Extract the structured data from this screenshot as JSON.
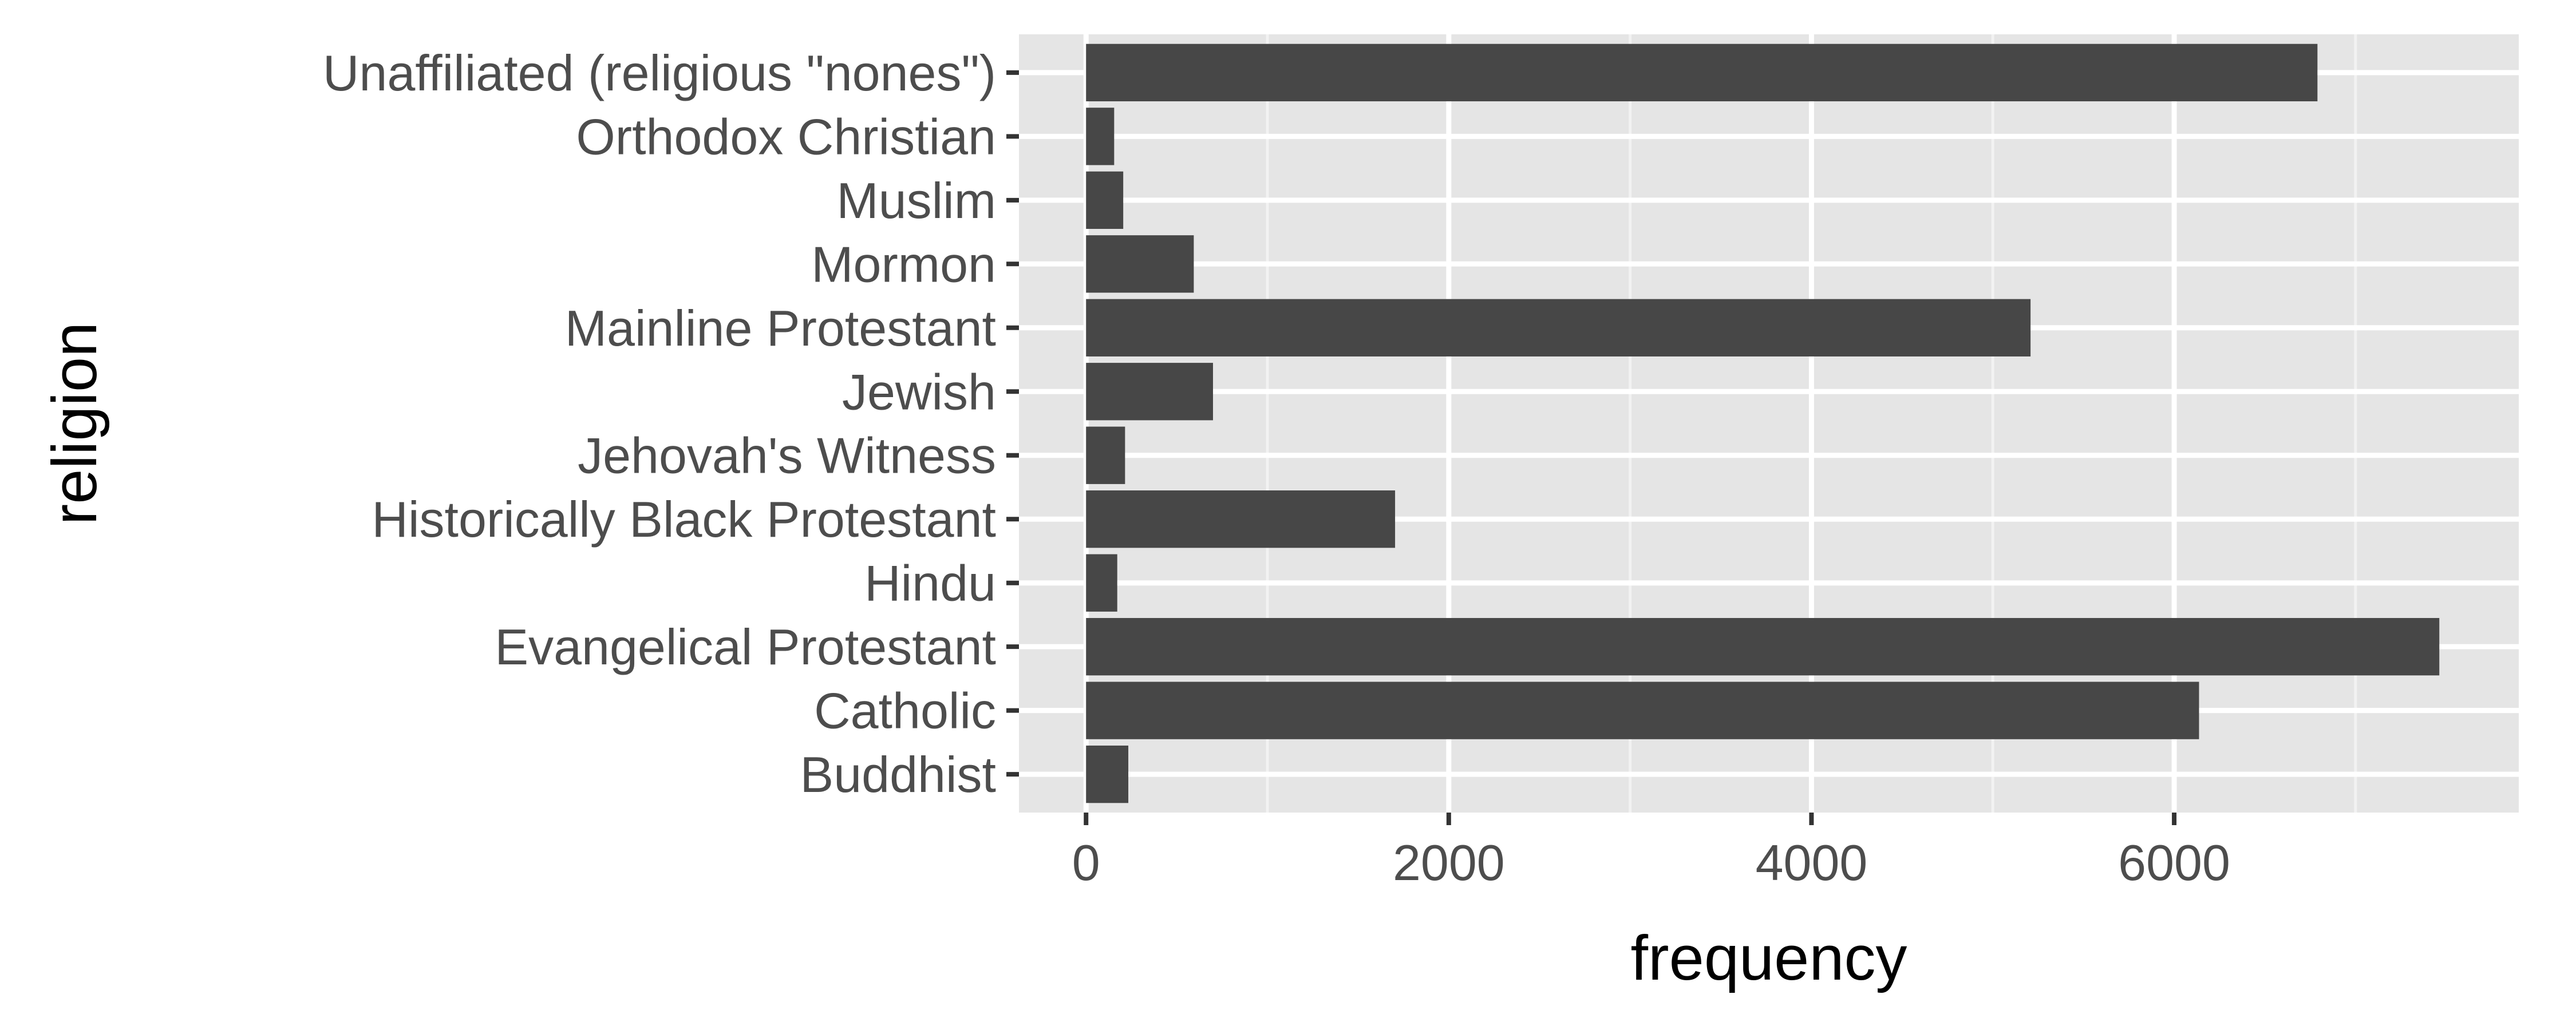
{
  "chart_data": {
    "type": "bar",
    "orientation": "horizontal",
    "xlabel": "frequency",
    "ylabel": "religion",
    "categories": [
      "Buddhist",
      "Catholic",
      "Evangelical Protestant",
      "Hindu",
      "Historically Black Protestant",
      "Jehovah's Witness",
      "Jewish",
      "Mainline Protestant",
      "Mormon",
      "Muslim",
      "Orthodox Christian",
      "Unaffiliated (religious \"nones\")"
    ],
    "values": [
      233,
      6137,
      7462,
      172,
      1704,
      215,
      700,
      5208,
      594,
      205,
      155,
      6790
    ],
    "xlim": [
      -370,
      7900
    ],
    "xticks": [
      0,
      2000,
      4000,
      6000
    ],
    "xtick_labels": [
      "0",
      "2000",
      "4000",
      "6000"
    ],
    "grid": true,
    "colors": {
      "panel_background": "#e5e5e5",
      "grid_major": "#ffffff",
      "grid_minor": "#f2f2f2",
      "bar_fill": "#474747",
      "tick_text": "#4d4d4d",
      "tick_mark": "#333333",
      "title_text": "#000000"
    }
  }
}
